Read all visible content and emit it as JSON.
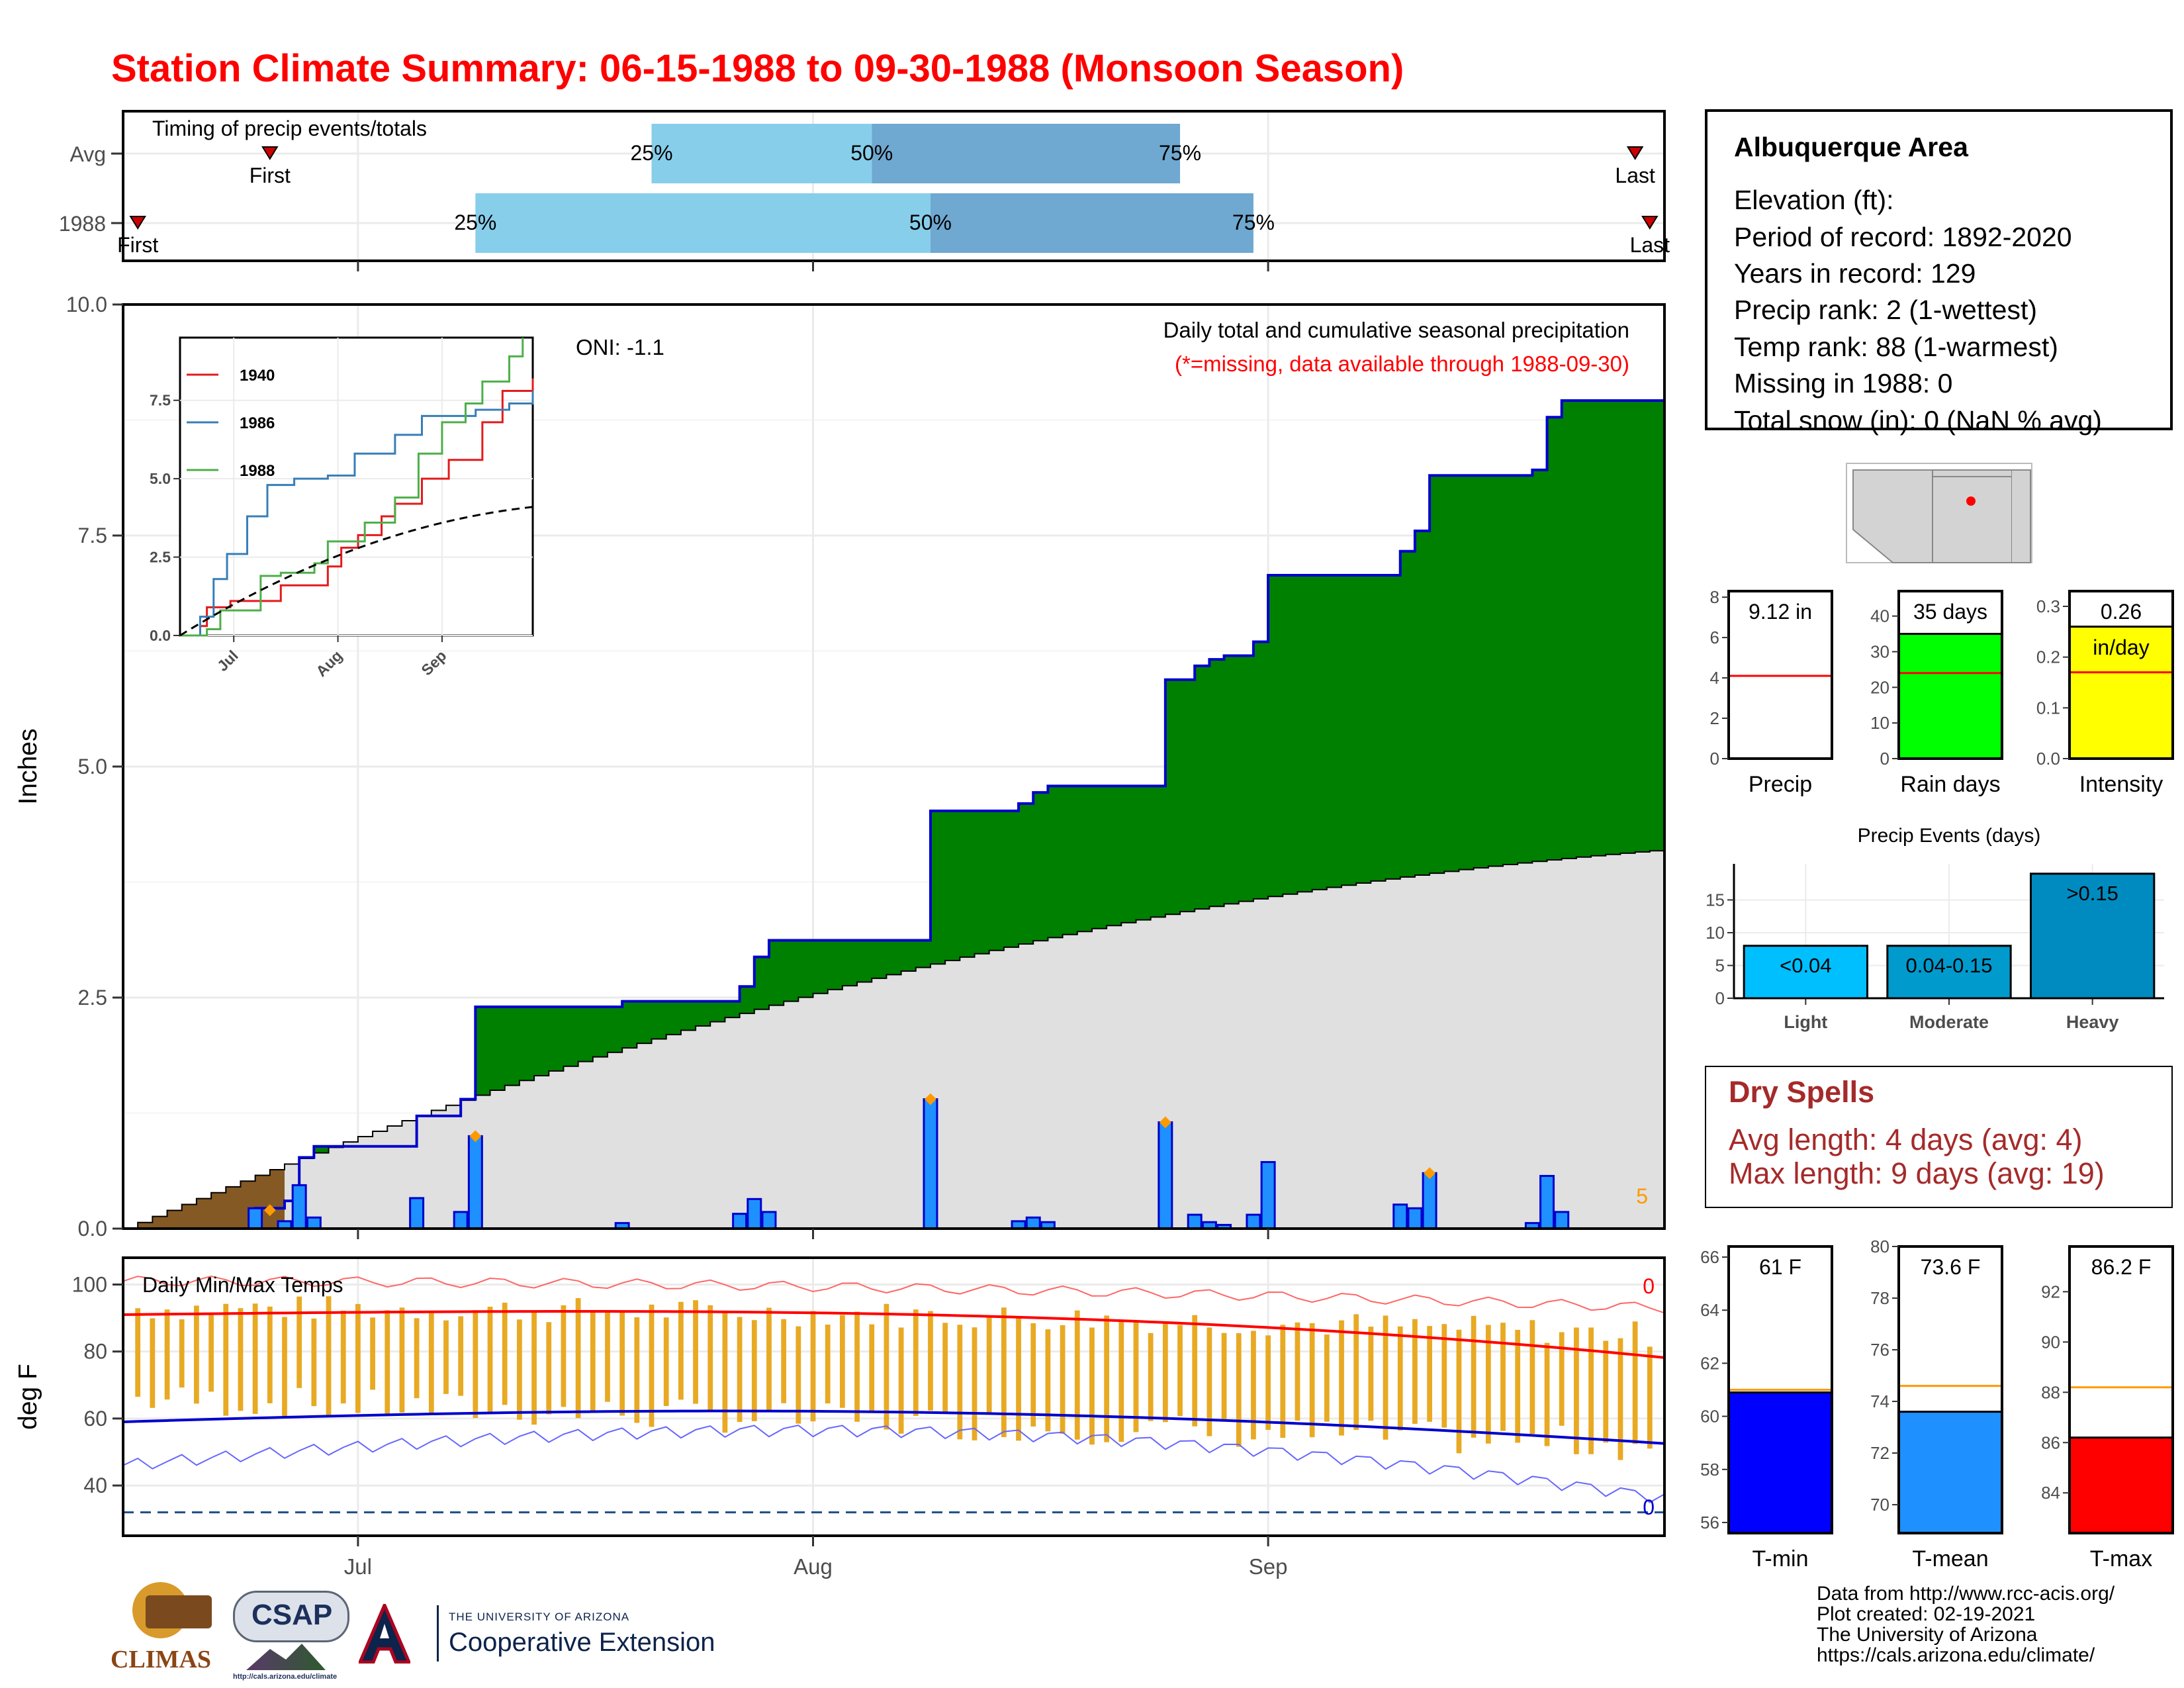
{
  "title": "Station Climate Summary: 06-15-1988 to 09-30-1988 (Monsoon Season)",
  "timing": {
    "label": "Timing of precip events/totals",
    "rows": [
      {
        "name": "Avg",
        "first_day": 10,
        "last_day": 103,
        "q25": 36,
        "q50": 51,
        "q75": 72
      },
      {
        "name": "1988",
        "first_day": 1,
        "last_day": 104,
        "q25": 24,
        "q50": 55,
        "q75": 77
      }
    ],
    "first_label": "First",
    "last_label": "Last",
    "q_labels": [
      "25%",
      "50%",
      "75%"
    ]
  },
  "chart_data": [
    {
      "type": "area",
      "name": "main",
      "title": "Daily total and cumulative seasonal precipitation",
      "subtitle": "(*=missing, data available through 1988-09-30)",
      "annotation": "ONI: -1.1",
      "corner_count": "5",
      "ylabel": "Inches",
      "ylim": [
        0,
        10
      ],
      "yticks": [
        "0.0",
        "2.5",
        "5.0",
        "7.5",
        "10.0"
      ],
      "xlim": [
        0,
        105
      ],
      "xtick_days": [
        16,
        47,
        78
      ],
      "xtick_labels": [
        "Jul",
        "Aug",
        "Sep"
      ],
      "daily_bars": [
        {
          "day": 9,
          "value": 0.22
        },
        {
          "day": 11,
          "value": 0.08
        },
        {
          "day": 12,
          "value": 0.47
        },
        {
          "day": 13,
          "value": 0.12
        },
        {
          "day": 20,
          "value": 0.33
        },
        {
          "day": 23,
          "value": 0.18
        },
        {
          "day": 24,
          "value": 1.0
        },
        {
          "day": 34,
          "value": 0.06
        },
        {
          "day": 42,
          "value": 0.16
        },
        {
          "day": 43,
          "value": 0.32
        },
        {
          "day": 44,
          "value": 0.18
        },
        {
          "day": 55,
          "value": 1.4
        },
        {
          "day": 61,
          "value": 0.08
        },
        {
          "day": 62,
          "value": 0.12
        },
        {
          "day": 63,
          "value": 0.07
        },
        {
          "day": 71,
          "value": 1.15
        },
        {
          "day": 73,
          "value": 0.15
        },
        {
          "day": 74,
          "value": 0.07
        },
        {
          "day": 75,
          "value": 0.04
        },
        {
          "day": 77,
          "value": 0.15
        },
        {
          "day": 78,
          "value": 0.72
        },
        {
          "day": 87,
          "value": 0.26
        },
        {
          "day": 88,
          "value": 0.22
        },
        {
          "day": 89,
          "value": 0.6
        },
        {
          "day": 96,
          "value": 0.06
        },
        {
          "day": 97,
          "value": 0.57
        },
        {
          "day": 98,
          "value": 0.18
        }
      ],
      "marker_days": [
        10,
        24,
        55,
        71,
        89
      ],
      "avg_cumulative_end": 4.1,
      "early_avg_fill_until_day": 10
    },
    {
      "type": "line",
      "name": "inset",
      "series": [
        {
          "name": "1940",
          "color": "#e41a1c"
        },
        {
          "name": "1986",
          "color": "#377eb8"
        },
        {
          "name": "1988",
          "color": "#4daf4a"
        }
      ],
      "yticks": [
        "0.0",
        "2.5",
        "5.0",
        "7.5"
      ],
      "ylim": [
        0,
        9.5
      ],
      "xtick_labels": [
        "Jul",
        "Aug",
        "Sep"
      ]
    },
    {
      "type": "line",
      "name": "temps",
      "title": "Daily Min/Max Temps",
      "ylabel": "deg F",
      "ylim": [
        25,
        108
      ],
      "yticks": [
        "40",
        "60",
        "80",
        "100"
      ],
      "top_count": "0",
      "bottom_count": "0",
      "freeze_line": 32,
      "xtick_labels": [
        "Jul",
        "Aug",
        "Sep"
      ]
    },
    {
      "type": "bar",
      "name": "precip-summary",
      "panels": [
        {
          "label": "Precip",
          "value_label": "9.12 in",
          "value": 9.12,
          "avg": 4.1,
          "ylim": [
            0,
            8.3
          ],
          "ticks": [
            "0",
            "2",
            "4",
            "6",
            "8"
          ],
          "color": "#ffffff"
        },
        {
          "label": "Rain days",
          "value_label": "35 days",
          "value": 35,
          "avg": 24,
          "ylim": [
            0,
            47
          ],
          "ticks": [
            "0",
            "10",
            "20",
            "30",
            "40"
          ],
          "color": "#00ff00"
        },
        {
          "label": "Intensity",
          "value_label": "0.26",
          "unit_label": "in/day",
          "value": 0.26,
          "avg": 0.17,
          "ylim": [
            0,
            0.33
          ],
          "ticks": [
            "0.0",
            "0.1",
            "0.2",
            "0.3"
          ],
          "color": "#ffff00"
        }
      ]
    },
    {
      "type": "bar",
      "name": "precip-events",
      "title": "Precip Events (days)",
      "categories": [
        "Light",
        "Moderate",
        "Heavy"
      ],
      "values": [
        8,
        8,
        19
      ],
      "bar_labels": [
        "<0.04",
        "0.04-0.15",
        ">0.15"
      ],
      "colors": [
        "#00bfff",
        "#009acd",
        "#008bc0"
      ],
      "yticks": [
        "0",
        "5",
        "10",
        "15"
      ],
      "ylim": [
        0,
        20.5
      ]
    },
    {
      "type": "bar",
      "name": "temp-summary",
      "panels": [
        {
          "label": "T-min",
          "value_label": "61 F",
          "value": 60.9,
          "avg": 61.0,
          "ylim": [
            55.6,
            66.4
          ],
          "ticks": [
            "56",
            "58",
            "60",
            "62",
            "64",
            "66"
          ],
          "color": "#0000ff"
        },
        {
          "label": "T-mean",
          "value_label": "73.6 F",
          "value": 73.6,
          "avg": 74.6,
          "ylim": [
            68.9,
            80.0
          ],
          "ticks": [
            "70",
            "72",
            "74",
            "76",
            "78",
            "80"
          ],
          "color": "#1e90ff"
        },
        {
          "label": "T-max",
          "value_label": "86.2 F",
          "value": 86.2,
          "avg": 88.2,
          "ylim": [
            82.4,
            93.8
          ],
          "ticks": [
            "84",
            "86",
            "88",
            "90",
            "92"
          ],
          "color": "#ff0000"
        }
      ]
    }
  ],
  "station": {
    "name": "Albuquerque Area",
    "lines": [
      "Elevation (ft):",
      "Period of record: 1892-2020",
      "Years in record: 129",
      "Precip rank: 2 (1-wettest)",
      "Temp rank: 88 (1-warmest)",
      "Missing in 1988: 0",
      "Total snow (in): 0 (NaN % avg)"
    ]
  },
  "dry_spells": {
    "title": "Dry Spells",
    "avg": "Avg length: 4 days (avg: 4)",
    "max": "Max length: 9 days (avg: 19)"
  },
  "credits": [
    "Data from http://www.rcc-acis.org/",
    "Plot created: 02-19-2021",
    "The University of Arizona",
    "https://cals.arizona.edu/climate/"
  ],
  "logos": {
    "climas": "CLIMAS",
    "csap": "CSAP",
    "csap_url": "http://cals.arizona.edu/climate",
    "ua_small": "THE UNIVERSITY OF ARIZONA",
    "ua_big": "Cooperative Extension"
  },
  "colors": {
    "cumulative_fill": "#008000",
    "cumulative_line": "#0000cd",
    "average_fill": "#e0e0e0",
    "daily_bar": "#1e90ff",
    "title_red": "#ff0000",
    "dry_spell": "#a52a2a",
    "q_light": "#87ceeb",
    "q_dark": "#6fa8d0"
  }
}
